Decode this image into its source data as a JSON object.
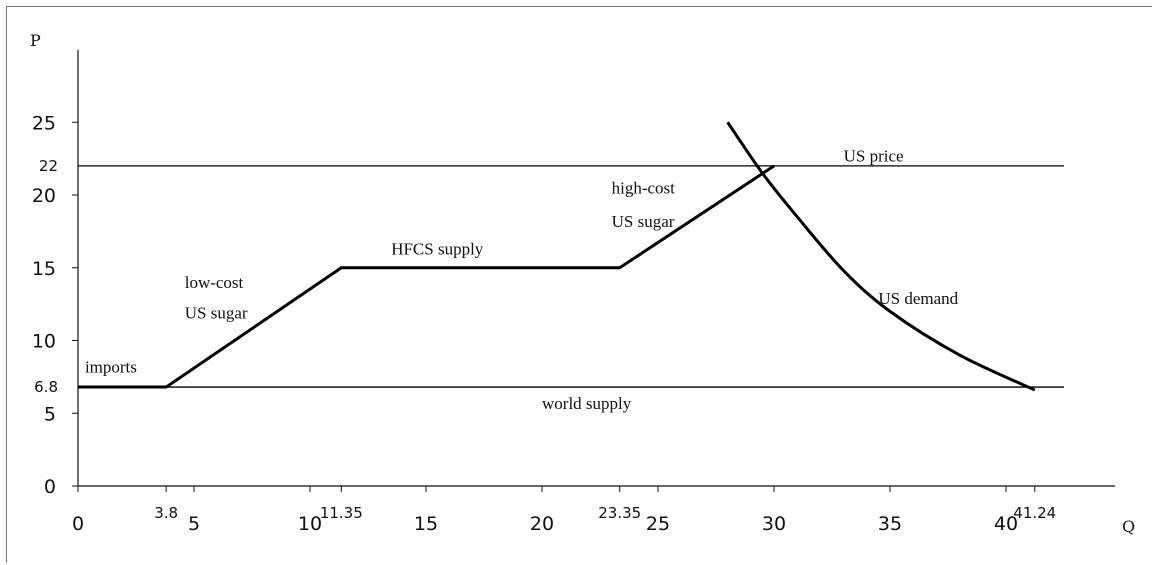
{
  "chart_data": {
    "type": "line",
    "xlabel": "Q",
    "ylabel": "P",
    "xlim": [
      0,
      45
    ],
    "ylim": [
      0,
      30
    ],
    "grid": false,
    "x_ticks": [
      {
        "value": 0,
        "label": "0"
      },
      {
        "value": 5,
        "label": "5"
      },
      {
        "value": 10,
        "label": "10"
      },
      {
        "value": 15,
        "label": "15"
      },
      {
        "value": 20,
        "label": "20"
      },
      {
        "value": 25,
        "label": "25"
      },
      {
        "value": 30,
        "label": "30"
      },
      {
        "value": 35,
        "label": "35"
      },
      {
        "value": 40,
        "label": "40"
      }
    ],
    "x_marks": [
      {
        "value": 3.8,
        "label": "3.8"
      },
      {
        "value": 11.35,
        "label": "11.35"
      },
      {
        "value": 23.35,
        "label": "23.35"
      },
      {
        "value": 41.24,
        "label": "41.24"
      }
    ],
    "y_ticks": [
      {
        "value": 0,
        "label": "0"
      },
      {
        "value": 5,
        "label": "5"
      },
      {
        "value": 10,
        "label": "10"
      },
      {
        "value": 15,
        "label": "15"
      },
      {
        "value": 20,
        "label": "20"
      },
      {
        "value": 25,
        "label": "25"
      }
    ],
    "y_marks": [
      {
        "value": 6.8,
        "label": "6.8"
      },
      {
        "value": 22,
        "label": "22"
      }
    ],
    "series": [
      {
        "key": "us-price",
        "kind": "thin",
        "points": [
          [
            0,
            22
          ],
          [
            42.5,
            22
          ]
        ]
      },
      {
        "key": "world-supply",
        "kind": "thin",
        "points": [
          [
            0,
            6.8
          ],
          [
            42.5,
            6.8
          ]
        ]
      },
      {
        "key": "us-supply",
        "kind": "thick",
        "points": [
          [
            0,
            6.8
          ],
          [
            3.8,
            6.8
          ],
          [
            11.35,
            15
          ],
          [
            23.35,
            15
          ],
          [
            30,
            22
          ]
        ]
      },
      {
        "key": "us-demand",
        "kind": "curve",
        "points": [
          [
            28,
            25
          ],
          [
            29.5,
            21.5
          ],
          [
            31,
            18.5
          ],
          [
            33,
            14.8
          ],
          [
            35,
            12
          ],
          [
            38,
            9
          ],
          [
            41.24,
            6.6
          ]
        ]
      }
    ],
    "annotations": [
      {
        "text": "US price",
        "x": 33,
        "y": 22.3
      },
      {
        "text": "high-cost",
        "x": 23,
        "y": 20.1
      },
      {
        "text": "US sugar",
        "x": 23,
        "y": 17.8
      },
      {
        "text": "HFCS supply",
        "x": 13.5,
        "y": 15.9
      },
      {
        "text": "low-cost",
        "x": 4.6,
        "y": 13.6
      },
      {
        "text": "US sugar",
        "x": 4.6,
        "y": 11.5
      },
      {
        "text": "US demand",
        "x": 34.5,
        "y": 12.5
      },
      {
        "text": "imports",
        "x": 0.3,
        "y": 7.8
      },
      {
        "text": "world supply",
        "x": 20,
        "y": 5.3
      }
    ]
  }
}
